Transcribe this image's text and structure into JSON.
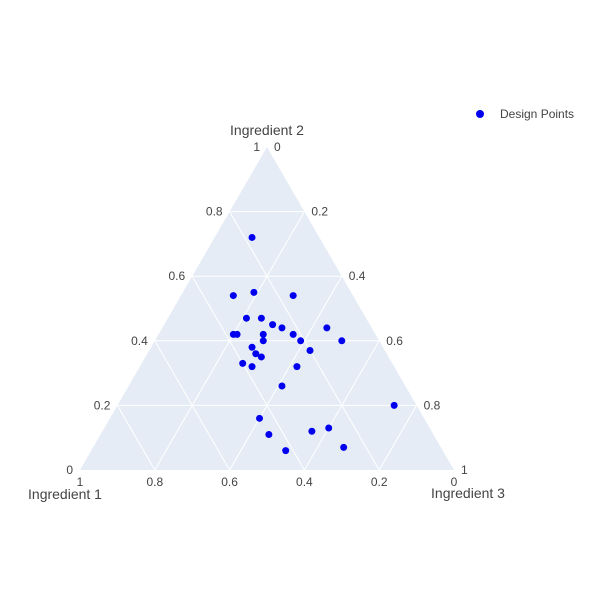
{
  "chart_data": {
    "type": "scatter",
    "subtype": "ternary",
    "title": "",
    "axes": {
      "a": {
        "title": "Ingredient 1",
        "ticks": [
          0,
          0.2,
          0.4,
          0.6,
          0.8,
          1
        ]
      },
      "b": {
        "title": "Ingredient 2",
        "ticks": [
          0,
          0.2,
          0.4,
          0.6,
          0.8,
          1
        ]
      },
      "c": {
        "title": "Ingredient 3",
        "ticks": [
          0,
          0.2,
          0.4,
          0.6,
          0.8,
          1
        ]
      }
    },
    "tick_labels": {
      "a": [
        "1",
        "0.8",
        "0.6",
        "0.4",
        "0.2",
        "0"
      ],
      "b": [
        "0",
        "0.2",
        "0.4",
        "0.6",
        "0.8",
        "1"
      ],
      "c": [
        "0",
        "0.2",
        "0.4",
        "0.6",
        "0.8",
        "1"
      ]
    },
    "grid": true,
    "legend": {
      "position": "top-right"
    },
    "series": [
      {
        "name": "Design Points",
        "color": "#0000ee",
        "marker": "circle",
        "points": [
          {
            "a": 0.18,
            "b": 0.72,
            "c": 0.1
          },
          {
            "a": 0.32,
            "b": 0.54,
            "c": 0.14
          },
          {
            "a": 0.26,
            "b": 0.55,
            "c": 0.19
          },
          {
            "a": 0.16,
            "b": 0.54,
            "c": 0.3
          },
          {
            "a": 0.28,
            "b": 0.47,
            "c": 0.25
          },
          {
            "a": 0.32,
            "b": 0.47,
            "c": 0.21
          },
          {
            "a": 0.26,
            "b": 0.45,
            "c": 0.29
          },
          {
            "a": 0.24,
            "b": 0.44,
            "c": 0.32
          },
          {
            "a": 0.22,
            "b": 0.42,
            "c": 0.36
          },
          {
            "a": 0.37,
            "b": 0.42,
            "c": 0.21
          },
          {
            "a": 0.38,
            "b": 0.42,
            "c": 0.2
          },
          {
            "a": 0.3,
            "b": 0.42,
            "c": 0.28
          },
          {
            "a": 0.12,
            "b": 0.44,
            "c": 0.44
          },
          {
            "a": 0.31,
            "b": 0.4,
            "c": 0.29
          },
          {
            "a": 0.21,
            "b": 0.4,
            "c": 0.39
          },
          {
            "a": 0.35,
            "b": 0.38,
            "c": 0.27
          },
          {
            "a": 0.1,
            "b": 0.4,
            "c": 0.5
          },
          {
            "a": 0.35,
            "b": 0.36,
            "c": 0.29
          },
          {
            "a": 0.2,
            "b": 0.37,
            "c": 0.43
          },
          {
            "a": 0.34,
            "b": 0.35,
            "c": 0.31
          },
          {
            "a": 0.4,
            "b": 0.33,
            "c": 0.27
          },
          {
            "a": 0.26,
            "b": 0.32,
            "c": 0.42
          },
          {
            "a": 0.38,
            "b": 0.32,
            "c": 0.3
          },
          {
            "a": 0.33,
            "b": 0.26,
            "c": 0.41
          },
          {
            "a": 0.06,
            "b": 0.2,
            "c": 0.74
          },
          {
            "a": 0.44,
            "b": 0.16,
            "c": 0.4
          },
          {
            "a": 0.27,
            "b": 0.13,
            "c": 0.6
          },
          {
            "a": 0.32,
            "b": 0.12,
            "c": 0.56
          },
          {
            "a": 0.44,
            "b": 0.11,
            "c": 0.45
          },
          {
            "a": 0.26,
            "b": 0.07,
            "c": 0.67
          },
          {
            "a": 0.42,
            "b": 0.06,
            "c": 0.52
          }
        ]
      }
    ]
  }
}
